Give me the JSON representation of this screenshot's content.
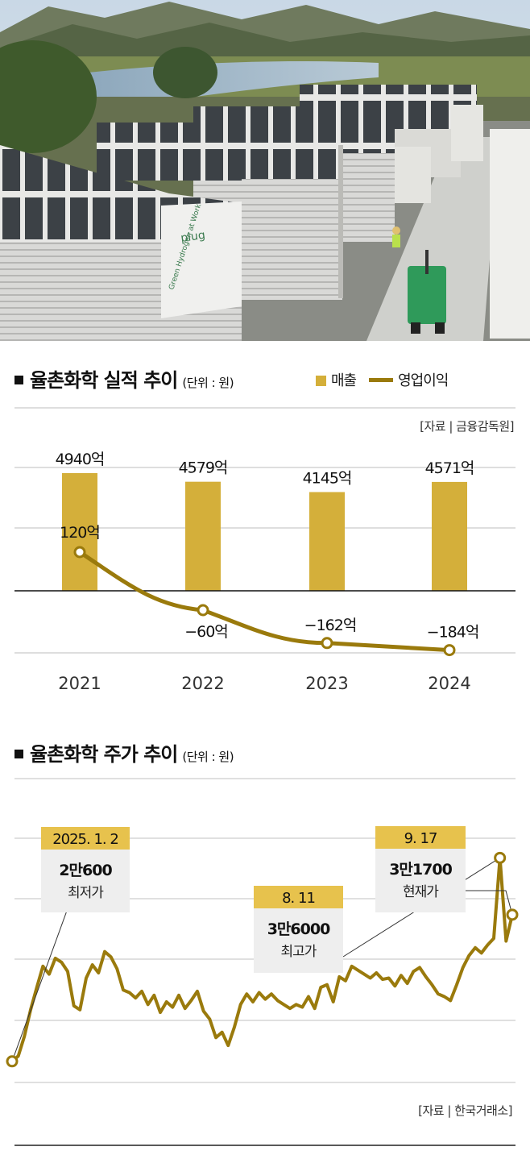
{
  "photo": {
    "sign_logo": "plug",
    "sign_text": "Green Hydrogen at Work"
  },
  "chart1": {
    "heading": "율촌화학 실적 추이",
    "unit": "(단위 : 원)",
    "legend_bar": "매출",
    "legend_line": "영업이익",
    "source": "[자료 | 금융감독원]"
  },
  "chart2": {
    "heading": "율촌화학 주가 추이",
    "unit": "(단위 : 원)",
    "source": "[자료 | 한국거래소]",
    "callouts": [
      {
        "date": "2025. 1. 2",
        "price": "2만600",
        "label": "최저가"
      },
      {
        "date": "8. 11",
        "price": "3만6000",
        "label": "최고가"
      },
      {
        "date": "9. 17",
        "price": "3만1700",
        "label": "현재가"
      }
    ]
  },
  "colors": {
    "bar": "#d4af3a",
    "line": "#9a7a0c",
    "callout_date_bg": "#e7c24d",
    "callout_body_bg": "#eeeeee"
  },
  "chart_data": [
    {
      "type": "bar",
      "categories": [
        "2021",
        "2022",
        "2023",
        "2024"
      ],
      "series": [
        {
          "name": "매출",
          "type": "bar",
          "values": [
            4940,
            4579,
            4145,
            4571
          ],
          "labels": [
            "4940억",
            "4579억",
            "4145억",
            "4571억"
          ]
        },
        {
          "name": "영업이익",
          "type": "line",
          "values": [
            120,
            -60,
            -162,
            -184
          ],
          "labels": [
            "120억",
            "−60억",
            "−162억",
            "−184억"
          ]
        }
      ],
      "grid": true
    },
    {
      "type": "line",
      "x_range": [
        "2025-01-02",
        "2025-09-17"
      ],
      "ylim": [
        19000,
        42000
      ],
      "grid": true,
      "series": [
        {
          "values": [
            20600,
            21000,
            22500,
            24500,
            26200,
            27800,
            27200,
            28400,
            28100,
            27400,
            24800,
            24500,
            26900,
            27900,
            27300,
            28900,
            28500,
            27600,
            26000,
            25800,
            25400,
            25900,
            24900,
            25600,
            24300,
            25100,
            24700,
            25600,
            24600,
            25200,
            25900,
            24400,
            23800,
            22400,
            22800,
            21800,
            23200,
            24900,
            25700,
            25100,
            25800,
            25300,
            25700,
            25200,
            24900,
            24600,
            24900,
            24700,
            25500,
            24600,
            26200,
            26400,
            25100,
            27000,
            26700,
            27800,
            27500,
            27200,
            26900,
            27300,
            26800,
            26900,
            26300,
            27100,
            26500,
            27400,
            27700,
            27000,
            26400,
            25700,
            25500,
            25200,
            26400,
            27700,
            28600,
            29200,
            28800,
            29400,
            29900,
            36000,
            29700,
            31700
          ]
        }
      ]
    }
  ]
}
